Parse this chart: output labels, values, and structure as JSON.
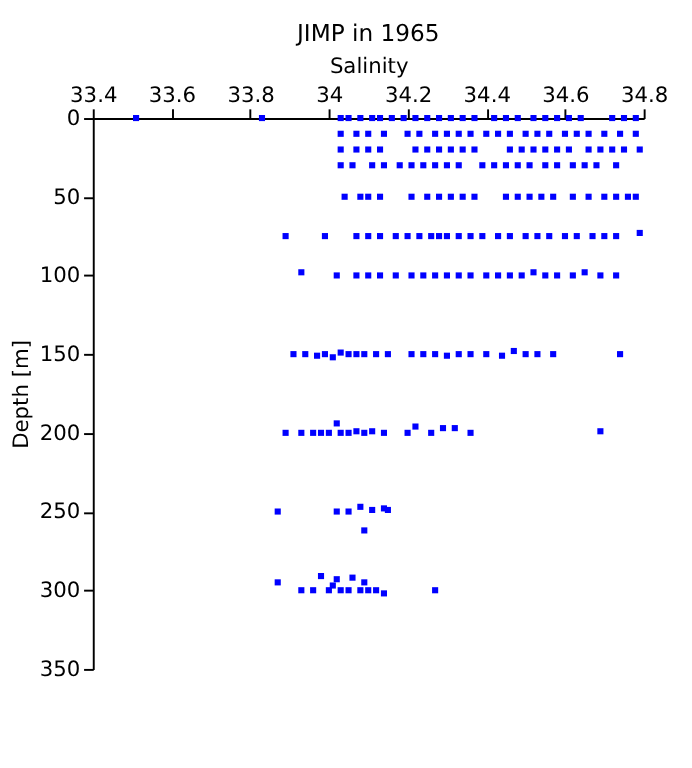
{
  "chart_data": {
    "type": "scatter",
    "title": "JIMP in 1965",
    "xlabel": "Salinity",
    "ylabel": "Depth [m]",
    "xlim": [
      33.4,
      34.8
    ],
    "xticks": [
      33.4,
      33.6,
      33.8,
      34,
      34.2,
      34.4,
      34.6,
      34.8
    ],
    "ylim": [
      350,
      0
    ],
    "yticks": [
      0,
      50,
      100,
      150,
      200,
      250,
      300,
      350
    ],
    "grid": false,
    "marker": "square",
    "series": [
      {
        "color": "#0000ff",
        "x": [
          33.51,
          33.83,
          34.03,
          34.05,
          34.08,
          34.11,
          34.13,
          34.16,
          34.19,
          34.22,
          34.25,
          34.28,
          34.31,
          34.34,
          34.37,
          34.42,
          34.45,
          34.48,
          34.52,
          34.55,
          34.58,
          34.61,
          34.64,
          34.72,
          34.75,
          34.78
        ],
        "values": [
          0,
          0,
          0,
          0,
          0,
          0,
          0,
          0,
          0,
          0,
          0,
          0,
          0,
          0,
          0,
          0,
          0,
          0,
          0,
          0,
          0,
          0,
          0,
          0,
          0,
          0
        ]
      },
      {
        "color": "#0000ff",
        "x": [
          34.03,
          34.07,
          34.1,
          34.14,
          34.2,
          34.23,
          34.27,
          34.3,
          34.33,
          34.36,
          34.4,
          34.43,
          34.46,
          34.5,
          34.53,
          34.56,
          34.6,
          34.63,
          34.66,
          34.7,
          34.74,
          34.78
        ],
        "values": [
          10,
          10,
          10,
          10,
          10,
          10,
          10,
          10,
          10,
          10,
          10,
          10,
          10,
          10,
          10,
          10,
          10,
          10,
          10,
          10,
          10,
          10
        ]
      },
      {
        "color": "#0000ff",
        "x": [
          34.03,
          34.07,
          34.1,
          34.13,
          34.22,
          34.25,
          34.28,
          34.31,
          34.34,
          34.37,
          34.46,
          34.49,
          34.52,
          34.55,
          34.58,
          34.61,
          34.66,
          34.69,
          34.72,
          34.75,
          34.79
        ],
        "values": [
          20,
          20,
          20,
          20,
          20,
          20,
          20,
          20,
          20,
          20,
          20,
          20,
          20,
          20,
          20,
          20,
          20,
          20,
          20,
          20,
          20
        ]
      },
      {
        "color": "#0000ff",
        "x": [
          34.03,
          34.06,
          34.11,
          34.14,
          34.18,
          34.21,
          34.24,
          34.27,
          34.3,
          34.33,
          34.39,
          34.42,
          34.45,
          34.48,
          34.51,
          34.55,
          34.58,
          34.62,
          34.65,
          34.68,
          34.73
        ],
        "values": [
          30,
          30,
          30,
          30,
          30,
          30,
          30,
          30,
          30,
          30,
          30,
          30,
          30,
          30,
          30,
          30,
          30,
          30,
          30,
          30,
          30
        ]
      },
      {
        "color": "#0000ff",
        "x": [
          34.04,
          34.08,
          34.1,
          34.13,
          34.21,
          34.25,
          34.28,
          34.31,
          34.34,
          34.37,
          34.45,
          34.48,
          34.51,
          34.54,
          34.57,
          34.62,
          34.66,
          34.7,
          34.73,
          34.76,
          34.78
        ],
        "values": [
          50,
          50,
          50,
          50,
          50,
          50,
          50,
          50,
          50,
          50,
          50,
          50,
          50,
          50,
          50,
          50,
          50,
          50,
          50,
          50,
          50
        ]
      },
      {
        "color": "#0000ff",
        "x": [
          33.89,
          33.99,
          34.07,
          34.1,
          34.13,
          34.17,
          34.2,
          34.23,
          34.26,
          34.28,
          34.3,
          34.33,
          34.36,
          34.39,
          34.43,
          34.46,
          34.5,
          34.53,
          34.56,
          34.6,
          34.63,
          34.67,
          34.7,
          34.73,
          34.79
        ],
        "values": [
          75,
          75,
          75,
          75,
          75,
          75,
          75,
          75,
          75,
          75,
          75,
          75,
          75,
          75,
          75,
          75,
          75,
          75,
          75,
          75,
          75,
          75,
          75,
          75,
          73
        ]
      },
      {
        "color": "#0000ff",
        "x": [
          33.93,
          34.02,
          34.07,
          34.1,
          34.13,
          34.17,
          34.21,
          34.24,
          34.27,
          34.3,
          34.33,
          34.36,
          34.4,
          34.43,
          34.46,
          34.49,
          34.52,
          34.55,
          34.58,
          34.62,
          34.65,
          34.69,
          34.73
        ],
        "values": [
          98,
          100,
          100,
          100,
          100,
          100,
          100,
          100,
          100,
          100,
          100,
          100,
          100,
          100,
          100,
          100,
          98,
          100,
          100,
          100,
          98,
          100,
          100
        ]
      },
      {
        "color": "#0000ff",
        "x": [
          33.91,
          33.94,
          33.97,
          33.99,
          34.01,
          34.03,
          34.05,
          34.07,
          34.09,
          34.12,
          34.15,
          34.21,
          34.24,
          34.27,
          34.3,
          34.33,
          34.36,
          34.4,
          34.44,
          34.47,
          34.5,
          34.53,
          34.57,
          34.74
        ],
        "values": [
          150,
          150,
          151,
          150,
          152,
          149,
          150,
          150,
          150,
          150,
          150,
          150,
          150,
          150,
          151,
          150,
          150,
          150,
          151,
          148,
          150,
          150,
          150,
          150
        ]
      },
      {
        "color": "#0000ff",
        "x": [
          33.89,
          33.93,
          33.96,
          33.98,
          34.0,
          34.02,
          34.03,
          34.05,
          34.07,
          34.09,
          34.11,
          34.14,
          34.2,
          34.22,
          34.26,
          34.29,
          34.32,
          34.36,
          34.69
        ],
        "values": [
          200,
          200,
          200,
          200,
          200,
          194,
          200,
          200,
          199,
          200,
          199,
          200,
          200,
          196,
          200,
          197,
          197,
          200,
          199
        ]
      },
      {
        "color": "#0000ff",
        "x": [
          33.87,
          34.02,
          34.05,
          34.08,
          34.09,
          34.11,
          34.14,
          34.15
        ],
        "values": [
          250,
          250,
          250,
          247,
          262,
          249,
          248,
          249
        ]
      },
      {
        "color": "#0000ff",
        "x": [
          33.87,
          33.93,
          33.96,
          33.98,
          34.0,
          34.01,
          34.02,
          34.03,
          34.05,
          34.06,
          34.08,
          34.09,
          34.1,
          34.12,
          34.14,
          34.27
        ],
        "values": [
          295,
          300,
          300,
          291,
          300,
          297,
          293,
          300,
          300,
          292,
          300,
          295,
          300,
          300,
          302,
          300
        ]
      }
    ]
  }
}
